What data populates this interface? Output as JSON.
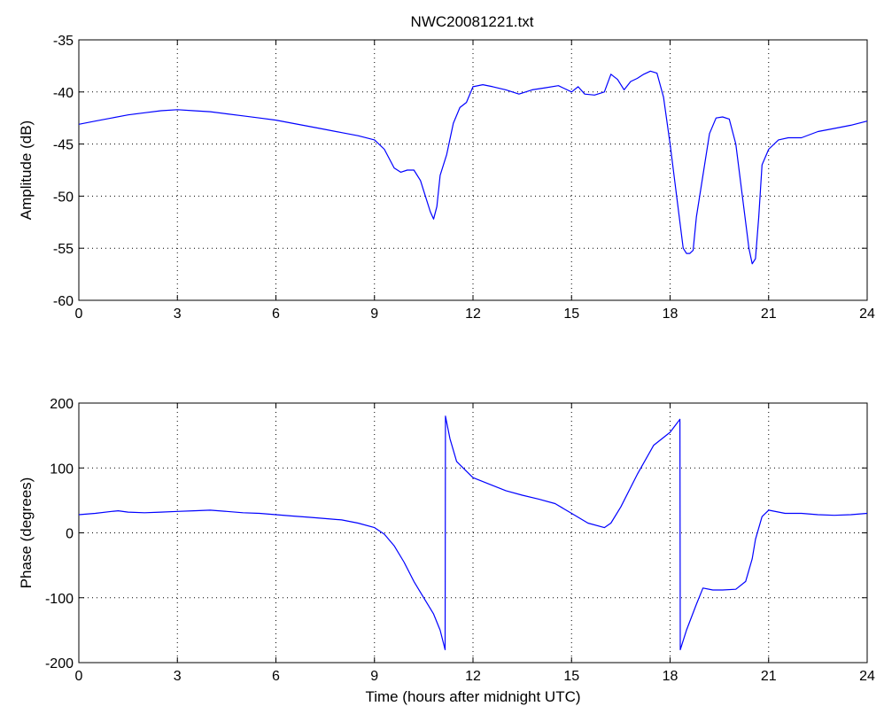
{
  "window_title": "NWC20081221.txt",
  "chart_data": [
    {
      "type": "line",
      "title": "NWC20081221.txt",
      "xlabel": "",
      "ylabel": "Amplitude (dB)",
      "xlim": [
        0,
        24
      ],
      "ylim": [
        -60,
        -35
      ],
      "xticks": [
        0,
        3,
        6,
        9,
        12,
        15,
        18,
        21,
        24
      ],
      "yticks": [
        -60,
        -55,
        -50,
        -45,
        -40,
        -35
      ],
      "grid": true,
      "line_color": "#0000ff",
      "series": [
        {
          "x": [
            0,
            0.5,
            1,
            1.5,
            2,
            2.5,
            3,
            3.5,
            4,
            4.5,
            5,
            5.5,
            6,
            6.5,
            7,
            7.5,
            8,
            8.5,
            9,
            9.3,
            9.6,
            9.8,
            10,
            10.2,
            10.4,
            10.6,
            10.7,
            10.8,
            10.9,
            11,
            11.2,
            11.4,
            11.6,
            11.8,
            12,
            12.3,
            12.6,
            13,
            13.4,
            13.8,
            14.2,
            14.6,
            15,
            15.2,
            15.4,
            15.7,
            16,
            16.2,
            16.4,
            16.6,
            16.8,
            17,
            17.2,
            17.4,
            17.6,
            17.8,
            18,
            18.2,
            18.4,
            18.5,
            18.6,
            18.7,
            18.8,
            19,
            19.2,
            19.4,
            19.6,
            19.8,
            20,
            20.2,
            20.4,
            20.5,
            20.6,
            20.7,
            20.8,
            21,
            21.3,
            21.6,
            22,
            22.5,
            23,
            23.5,
            24
          ],
          "values": [
            -43.1,
            -42.8,
            -42.5,
            -42.2,
            -42,
            -41.8,
            -41.7,
            -41.8,
            -41.9,
            -42.1,
            -42.3,
            -42.5,
            -42.7,
            -43,
            -43.3,
            -43.6,
            -43.9,
            -44.2,
            -44.6,
            -45.5,
            -47.3,
            -47.7,
            -47.5,
            -47.5,
            -48.5,
            -50.5,
            -51.5,
            -52.2,
            -51,
            -48,
            -46,
            -43,
            -41.5,
            -41,
            -39.5,
            -39.3,
            -39.5,
            -39.8,
            -40.2,
            -39.8,
            -39.6,
            -39.4,
            -40,
            -39.5,
            -40.2,
            -40.3,
            -40,
            -38.3,
            -38.8,
            -39.8,
            -39,
            -38.7,
            -38.3,
            -38,
            -38.2,
            -40.5,
            -45,
            -50,
            -55,
            -55.5,
            -55.5,
            -55.2,
            -52,
            -48,
            -44,
            -42.5,
            -42.4,
            -42.6,
            -45,
            -50,
            -55,
            -56.5,
            -56,
            -52,
            -47,
            -45.5,
            -44.6,
            -44.4,
            -44.4,
            -43.8,
            -43.5,
            -43.2,
            -42.8
          ]
        }
      ]
    },
    {
      "type": "line",
      "title": "",
      "xlabel": "Time (hours after midnight UTC)",
      "ylabel": "Phase (degrees)",
      "xlim": [
        0,
        24
      ],
      "ylim": [
        -200,
        200
      ],
      "xticks": [
        0,
        3,
        6,
        9,
        12,
        15,
        18,
        21,
        24
      ],
      "yticks": [
        -200,
        -100,
        0,
        100,
        200
      ],
      "grid": true,
      "line_color": "#0000ff",
      "series": [
        {
          "x": [
            0,
            0.5,
            1,
            1.2,
            1.5,
            2,
            2.5,
            3,
            3.5,
            4,
            4.5,
            5,
            5.5,
            6,
            6.5,
            7,
            7.5,
            8,
            8.5,
            9,
            9.3,
            9.6,
            9.9,
            10.2,
            10.5,
            10.8,
            11,
            11.15,
            11.16,
            11.3,
            11.5,
            11.8,
            12,
            12.5,
            13,
            13.5,
            14,
            14.5,
            15,
            15.5,
            16,
            16.2,
            16.5,
            17,
            17.5,
            18,
            18.3,
            18.31,
            18.5,
            18.8,
            19,
            19.3,
            19.6,
            20,
            20.3,
            20.5,
            20.6,
            20.8,
            21,
            21.5,
            22,
            22.5,
            23,
            23.5,
            24
          ],
          "values": [
            28,
            30,
            33,
            34,
            32,
            31,
            32,
            33,
            34,
            35,
            33,
            31,
            30,
            28,
            26,
            24,
            22,
            20,
            15,
            8,
            -2,
            -20,
            -45,
            -75,
            -100,
            -125,
            -150,
            -180,
            180,
            145,
            110,
            95,
            85,
            75,
            65,
            58,
            52,
            45,
            30,
            15,
            8,
            15,
            40,
            90,
            135,
            155,
            175,
            -180,
            -150,
            -110,
            -85,
            -88,
            -88,
            -87,
            -75,
            -40,
            -10,
            25,
            35,
            30,
            30,
            28,
            27,
            28,
            30
          ]
        }
      ]
    }
  ]
}
